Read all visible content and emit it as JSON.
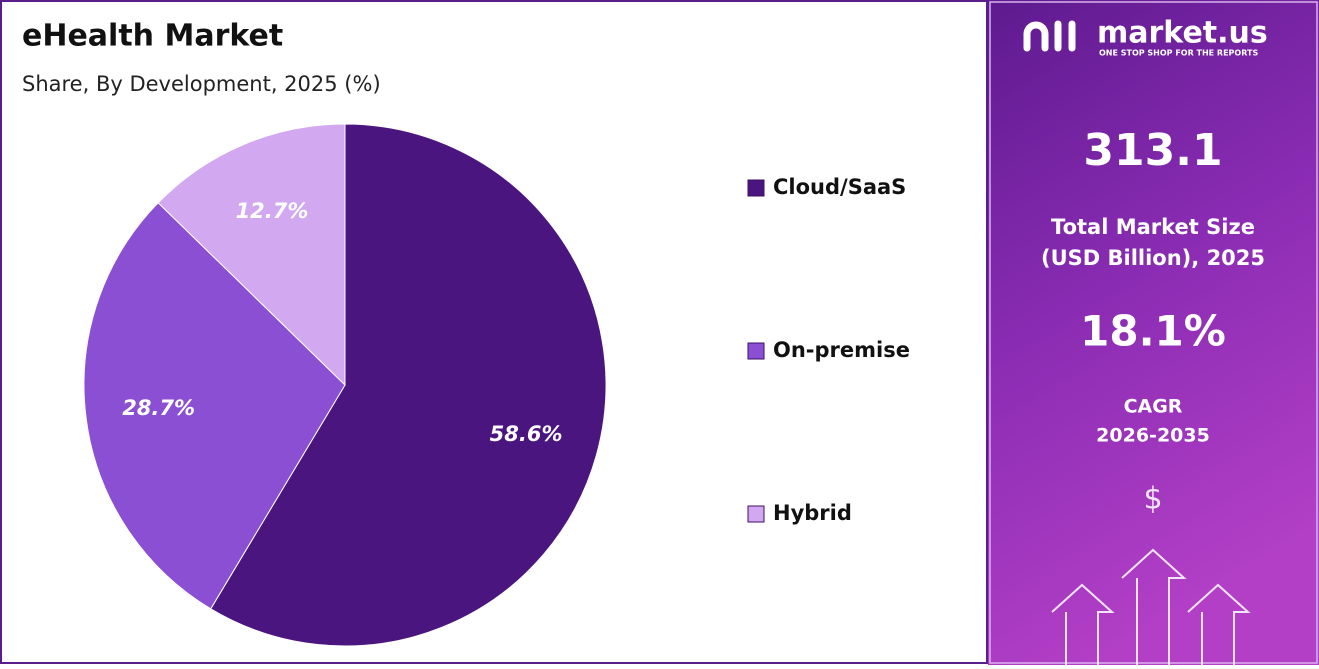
{
  "chart_data": {
    "type": "pie",
    "title": "eHealth Market",
    "subtitle": "Share, By Development, 2025 (%)",
    "categories": [
      "Cloud/SaaS",
      "On-premise",
      "Hybrid"
    ],
    "values": [
      58.6,
      28.7,
      12.7
    ],
    "value_labels": [
      "58.6%",
      "28.7%",
      "12.7%"
    ],
    "colors": [
      "#4b1580",
      "#8a4fd3",
      "#d2a9f0"
    ]
  },
  "sidebar": {
    "brand": "market.us",
    "tagline": "ONE STOP SHOP FOR THE REPORTS",
    "market_size": "313.1",
    "market_size_label": [
      "Total Market Size",
      "(USD Billion), 2025"
    ],
    "cagr": "18.1%",
    "cagr_label": [
      "CAGR",
      "2026-2035"
    ],
    "currency": "$"
  }
}
